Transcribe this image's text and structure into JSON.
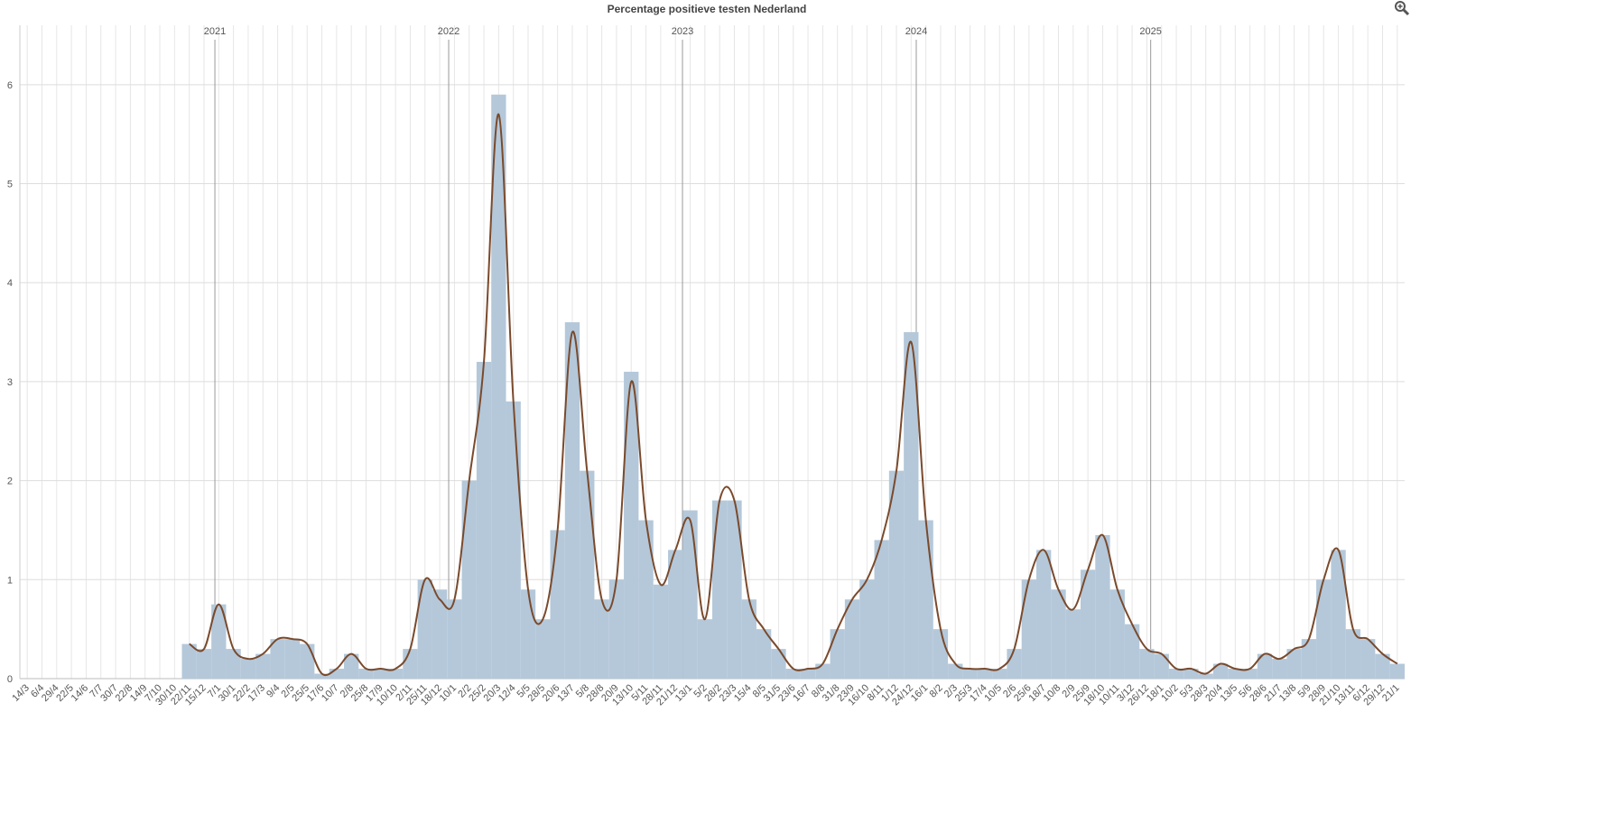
{
  "chart_data": {
    "type": "bar",
    "title": "Percentage positieve testen Nederland",
    "categories": [
      "14/3",
      "6/4",
      "29/4",
      "22/5",
      "14/6",
      "7/7",
      "30/7",
      "22/8",
      "14/9",
      "7/10",
      "30/10",
      "22/11",
      "15/12",
      "7/1",
      "30/1",
      "22/2",
      "17/3",
      "9/4",
      "2/5",
      "25/5",
      "17/6",
      "10/7",
      "2/8",
      "25/8",
      "17/9",
      "10/10",
      "2/11",
      "25/11",
      "18/12",
      "10/1",
      "2/2",
      "25/2",
      "20/3",
      "12/4",
      "5/5",
      "28/5",
      "20/6",
      "13/7",
      "5/8",
      "28/8",
      "20/9",
      "13/10",
      "5/11",
      "28/11",
      "21/12",
      "13/1",
      "5/2",
      "28/2",
      "23/3",
      "15/4",
      "8/5",
      "31/5",
      "23/6",
      "16/7",
      "8/8",
      "31/8",
      "23/9",
      "16/10",
      "8/11",
      "1/12",
      "24/12",
      "16/1",
      "8/2",
      "2/3",
      "25/3",
      "17/4",
      "10/5",
      "2/6",
      "25/6",
      "18/7",
      "10/8",
      "2/9",
      "25/9",
      "18/10",
      "10/11",
      "3/12",
      "26/12",
      "18/1",
      "10/2",
      "5/3",
      "28/3",
      "20/4",
      "13/5",
      "5/6",
      "28/6",
      "21/7",
      "13/8",
      "5/9",
      "28/9",
      "21/10",
      "13/11",
      "6/12",
      "29/12",
      "21/1"
    ],
    "series": [
      {
        "type": "bar",
        "color": "#b4c8da",
        "values": [
          null,
          null,
          null,
          null,
          null,
          null,
          null,
          null,
          null,
          null,
          null,
          0.35,
          0.3,
          0.75,
          0.3,
          0.2,
          0.25,
          0.4,
          0.4,
          0.35,
          0.05,
          0.1,
          0.25,
          0.1,
          0.1,
          0.1,
          0.3,
          1.0,
          0.9,
          0.8,
          2.0,
          3.2,
          5.9,
          2.8,
          0.9,
          0.6,
          1.5,
          3.6,
          2.1,
          0.8,
          1.0,
          3.1,
          1.6,
          0.95,
          1.3,
          1.7,
          0.6,
          1.8,
          1.8,
          0.8,
          0.5,
          0.3,
          0.1,
          0.1,
          0.15,
          0.5,
          0.8,
          1.0,
          1.4,
          2.1,
          3.5,
          1.6,
          0.5,
          0.15,
          0.1,
          0.1,
          0.1,
          0.3,
          1.0,
          1.3,
          0.9,
          0.7,
          1.1,
          1.45,
          0.9,
          0.55,
          0.3,
          0.25,
          0.1,
          0.1,
          0.05,
          0.15,
          0.1,
          0.1,
          0.25,
          0.2,
          0.3,
          0.4,
          1.0,
          1.3,
          0.5,
          0.4,
          0.25,
          0.15
        ]
      },
      {
        "type": "line",
        "color": "#7a4a2c",
        "values": [
          null,
          null,
          null,
          null,
          null,
          null,
          null,
          null,
          null,
          null,
          null,
          0.35,
          0.3,
          0.75,
          0.3,
          0.2,
          0.25,
          0.4,
          0.4,
          0.35,
          0.05,
          0.1,
          0.25,
          0.1,
          0.1,
          0.1,
          0.3,
          1.0,
          0.8,
          0.8,
          2.0,
          3.2,
          5.7,
          2.8,
          0.9,
          0.6,
          1.5,
          3.5,
          2.1,
          0.8,
          1.0,
          3.0,
          1.6,
          0.95,
          1.3,
          1.6,
          0.6,
          1.8,
          1.8,
          0.8,
          0.5,
          0.3,
          0.1,
          0.1,
          0.15,
          0.5,
          0.8,
          1.0,
          1.4,
          2.1,
          3.4,
          1.6,
          0.5,
          0.15,
          0.1,
          0.1,
          0.1,
          0.3,
          1.0,
          1.3,
          0.9,
          0.7,
          1.1,
          1.45,
          0.9,
          0.55,
          0.3,
          0.25,
          0.1,
          0.1,
          0.05,
          0.15,
          0.1,
          0.1,
          0.25,
          0.2,
          0.3,
          0.4,
          1.0,
          1.3,
          0.5,
          0.4,
          0.25,
          0.15
        ]
      }
    ],
    "year_markers": [
      "2021",
      "2022",
      "2023",
      "2024",
      "2025"
    ],
    "ylim": [
      0,
      6.6
    ],
    "yticks": [
      0,
      1,
      2,
      3,
      4,
      5,
      6
    ],
    "grid": true
  }
}
